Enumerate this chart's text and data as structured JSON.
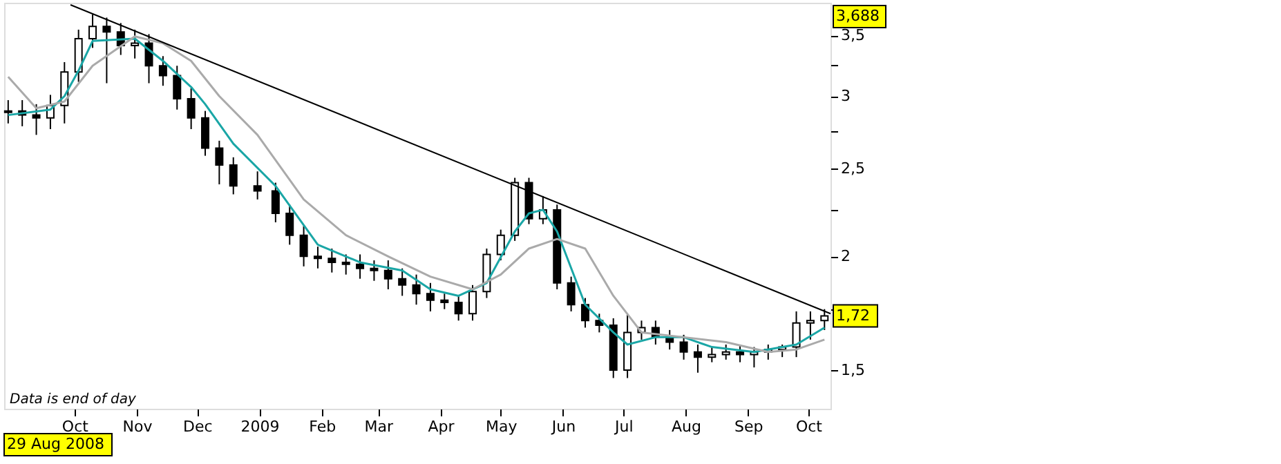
{
  "chart_data": {
    "type": "candlestick",
    "x": [
      "2008-08-29",
      "2008-09-05",
      "2008-09-12",
      "2008-09-19",
      "2008-09-26",
      "2008-10-03",
      "2008-10-10",
      "2008-10-17",
      "2008-10-24",
      "2008-10-31",
      "2008-11-07",
      "2008-11-14",
      "2008-11-21",
      "2008-11-28",
      "2008-12-05",
      "2008-12-12",
      "2008-12-19",
      "2008-12-31",
      "2009-01-09",
      "2009-01-16",
      "2009-01-23",
      "2009-01-30",
      "2009-02-06",
      "2009-02-13",
      "2009-02-20",
      "2009-02-27",
      "2009-03-06",
      "2009-03-13",
      "2009-03-20",
      "2009-03-27",
      "2009-04-03",
      "2009-04-10",
      "2009-04-17",
      "2009-04-24",
      "2009-05-01",
      "2009-05-08",
      "2009-05-15",
      "2009-05-22",
      "2009-05-29",
      "2009-06-05",
      "2009-06-12",
      "2009-06-19",
      "2009-06-26",
      "2009-07-03",
      "2009-07-10",
      "2009-07-17",
      "2009-07-24",
      "2009-07-31",
      "2009-08-07",
      "2009-08-14",
      "2009-08-21",
      "2009-08-28",
      "2009-09-04",
      "2009-09-11",
      "2009-09-18",
      "2009-09-25",
      "2009-10-02",
      "2009-10-09"
    ],
    "ohlc": [
      [
        2.88,
        2.97,
        2.8,
        2.89
      ],
      [
        2.89,
        2.97,
        2.78,
        2.86
      ],
      [
        2.86,
        2.94,
        2.72,
        2.84
      ],
      [
        2.84,
        3.01,
        2.76,
        2.93
      ],
      [
        2.93,
        3.27,
        2.8,
        3.19
      ],
      [
        3.19,
        3.55,
        3.11,
        3.47
      ],
      [
        3.47,
        3.688,
        3.39,
        3.58
      ],
      [
        3.58,
        3.66,
        3.1,
        3.53
      ],
      [
        3.53,
        3.61,
        3.33,
        3.41
      ],
      [
        3.41,
        3.55,
        3.3,
        3.43
      ],
      [
        3.43,
        3.51,
        3.1,
        3.24
      ],
      [
        3.24,
        3.32,
        3.08,
        3.16
      ],
      [
        3.16,
        3.24,
        2.9,
        2.98
      ],
      [
        2.98,
        3.06,
        2.76,
        2.84
      ],
      [
        2.84,
        2.89,
        2.58,
        2.63
      ],
      [
        2.63,
        2.68,
        2.4,
        2.52
      ],
      [
        2.52,
        2.57,
        2.34,
        2.39
      ],
      [
        2.39,
        2.48,
        2.31,
        2.36
      ],
      [
        2.36,
        2.41,
        2.18,
        2.23
      ],
      [
        2.23,
        2.28,
        2.06,
        2.11
      ],
      [
        2.11,
        2.16,
        1.95,
        2.0
      ],
      [
        2.0,
        2.05,
        1.94,
        1.99
      ],
      [
        1.99,
        2.04,
        1.92,
        1.97
      ],
      [
        1.97,
        2.01,
        1.91,
        1.96
      ],
      [
        1.96,
        2.01,
        1.89,
        1.94
      ],
      [
        1.94,
        1.98,
        1.88,
        1.93
      ],
      [
        1.93,
        1.98,
        1.84,
        1.89
      ],
      [
        1.89,
        1.94,
        1.81,
        1.86
      ],
      [
        1.86,
        1.91,
        1.77,
        1.82
      ],
      [
        1.82,
        1.87,
        1.74,
        1.79
      ],
      [
        1.79,
        1.82,
        1.75,
        1.78
      ],
      [
        1.78,
        1.81,
        1.7,
        1.73
      ],
      [
        1.73,
        1.86,
        1.7,
        1.83
      ],
      [
        1.83,
        2.04,
        1.8,
        2.01
      ],
      [
        2.01,
        2.14,
        1.98,
        2.11
      ],
      [
        2.11,
        2.44,
        2.08,
        2.41
      ],
      [
        2.41,
        2.44,
        2.17,
        2.2
      ],
      [
        2.2,
        2.33,
        2.17,
        2.25
      ],
      [
        2.25,
        2.28,
        1.84,
        1.87
      ],
      [
        1.87,
        1.9,
        1.74,
        1.77
      ],
      [
        1.77,
        1.8,
        1.67,
        1.7
      ],
      [
        1.7,
        1.73,
        1.65,
        1.68
      ],
      [
        1.68,
        1.71,
        1.47,
        1.5
      ],
      [
        1.5,
        1.73,
        1.47,
        1.65
      ],
      [
        1.65,
        1.7,
        1.62,
        1.67
      ],
      [
        1.67,
        1.7,
        1.6,
        1.63
      ],
      [
        1.63,
        1.66,
        1.58,
        1.61
      ],
      [
        1.61,
        1.64,
        1.54,
        1.57
      ],
      [
        1.57,
        1.6,
        1.49,
        1.55
      ],
      [
        1.55,
        1.59,
        1.53,
        1.56
      ],
      [
        1.56,
        1.6,
        1.54,
        1.57
      ],
      [
        1.57,
        1.6,
        1.53,
        1.56
      ],
      [
        1.56,
        1.59,
        1.51,
        1.57
      ],
      [
        1.57,
        1.6,
        1.54,
        1.58
      ],
      [
        1.58,
        1.6,
        1.55,
        1.59
      ],
      [
        1.59,
        1.74,
        1.55,
        1.69
      ],
      [
        1.69,
        1.74,
        1.62,
        1.7
      ],
      [
        1.7,
        1.75,
        1.66,
        1.72
      ]
    ],
    "colors": [
      "#ffffff",
      "#000000",
      "#000000",
      "#ffffff",
      "#ffffff",
      "#ffffff",
      "#ffffff",
      "#000000",
      "#000000",
      "#ffffff",
      "#000000",
      "#000000",
      "#000000",
      "#000000",
      "#000000",
      "#000000",
      "#000000",
      "#000000",
      "#000000",
      "#000000",
      "#000000",
      "#000000",
      "#000000",
      "#000000",
      "#000000",
      "#000000",
      "#000000",
      "#000000",
      "#000000",
      "#000000",
      "#000000",
      "#000000",
      "#ffffff",
      "#ffffff",
      "#ffffff",
      "#ffffff",
      "#000000",
      "#ffffff",
      "#000000",
      "#000000",
      "#000000",
      "#000000",
      "#000000",
      "#ffffff",
      "#ffffff",
      "#000000",
      "#000000",
      "#000000",
      "#000000",
      "#ffffff",
      "#ffffff",
      "#000000",
      "#ffffff",
      "#ffffff",
      "#ffffff",
      "#ffffff",
      "#ffffff",
      "#ffffff"
    ],
    "series": [
      {
        "type": "line",
        "color": "#1aa6a6",
        "x": [
          "2008-08-29",
          "2008-09-19",
          "2008-09-26",
          "2008-10-03",
          "2008-10-10",
          "2008-10-31",
          "2008-11-14",
          "2008-11-28",
          "2008-12-05",
          "2008-12-19",
          "2009-01-09",
          "2009-01-30",
          "2009-02-20",
          "2009-03-13",
          "2009-03-27",
          "2009-04-10",
          "2009-04-24",
          "2009-05-08",
          "2009-05-15",
          "2009-05-22",
          "2009-05-29",
          "2009-06-12",
          "2009-06-26",
          "2009-07-03",
          "2009-07-17",
          "2009-07-31",
          "2009-08-14",
          "2009-09-04",
          "2009-09-25",
          "2009-10-09"
        ],
        "values": [
          2.86,
          2.9,
          3.0,
          3.2,
          3.45,
          3.47,
          3.28,
          3.07,
          2.94,
          2.66,
          2.39,
          2.06,
          1.97,
          1.93,
          1.84,
          1.81,
          1.87,
          2.13,
          2.23,
          2.25,
          2.13,
          1.77,
          1.65,
          1.6,
          1.63,
          1.63,
          1.59,
          1.57,
          1.6,
          1.67
        ]
      },
      {
        "type": "line",
        "color": "#aaaaaa",
        "x": [
          "2008-08-29",
          "2008-09-12",
          "2008-09-26",
          "2008-10-10",
          "2008-10-31",
          "2008-11-14",
          "2008-11-28",
          "2008-12-12",
          "2008-12-31",
          "2009-01-23",
          "2009-02-13",
          "2009-03-06",
          "2009-03-27",
          "2009-04-17",
          "2009-05-01",
          "2009-05-15",
          "2009-05-29",
          "2009-06-12",
          "2009-06-26",
          "2009-07-10",
          "2009-07-31",
          "2009-08-21",
          "2009-09-11",
          "2009-09-25",
          "2009-10-09"
        ],
        "values": [
          3.15,
          2.91,
          2.96,
          3.24,
          3.49,
          3.43,
          3.28,
          3.0,
          2.72,
          2.31,
          2.11,
          2.0,
          1.9,
          1.84,
          1.91,
          2.04,
          2.09,
          2.04,
          1.81,
          1.65,
          1.63,
          1.61,
          1.57,
          1.58,
          1.62
        ]
      },
      {
        "type": "line",
        "color": "#000000",
        "x": [
          "2008-09-29",
          "2009-10-12"
        ],
        "values": [
          3.78,
          1.73
        ]
      }
    ],
    "log": "y",
    "xlim": [
      "2008-08-27",
      "2009-10-12"
    ],
    "xticks": [
      {
        "value": "2008-10-01",
        "label": "Oct"
      },
      {
        "value": "2008-11-01",
        "label": "Nov"
      },
      {
        "value": "2008-12-01",
        "label": "Dec"
      },
      {
        "value": "2009-01-01",
        "label": "2009"
      },
      {
        "value": "2009-02-01",
        "label": "Feb"
      },
      {
        "value": "2009-03-01",
        "label": "Mar"
      },
      {
        "value": "2009-04-01",
        "label": "Apr"
      },
      {
        "value": "2009-05-01",
        "label": "May"
      },
      {
        "value": "2009-06-01",
        "label": "Jun"
      },
      {
        "value": "2009-07-01",
        "label": "Jul"
      },
      {
        "value": "2009-08-01",
        "label": "Aug"
      },
      {
        "value": "2009-09-01",
        "label": "Sep"
      },
      {
        "value": "2009-10-01",
        "label": "Oct"
      }
    ],
    "ylim": [
      1.36,
      3.8
    ],
    "yticks": [
      {
        "value": 1.5,
        "label": "1,5"
      },
      {
        "value": 1.75,
        "label": null
      },
      2,
      {
        "value": 2.25,
        "label": null
      },
      {
        "value": 2.5,
        "label": "2,5"
      },
      {
        "value": 2.75,
        "label": null
      },
      3,
      {
        "value": 3.25,
        "label": null
      },
      {
        "value": 3.5,
        "label": "3,5"
      }
    ],
    "grid": false,
    "annotations": [
      "3,688",
      "1,72",
      "29 Aug 2008",
      "Data is end of day"
    ]
  }
}
